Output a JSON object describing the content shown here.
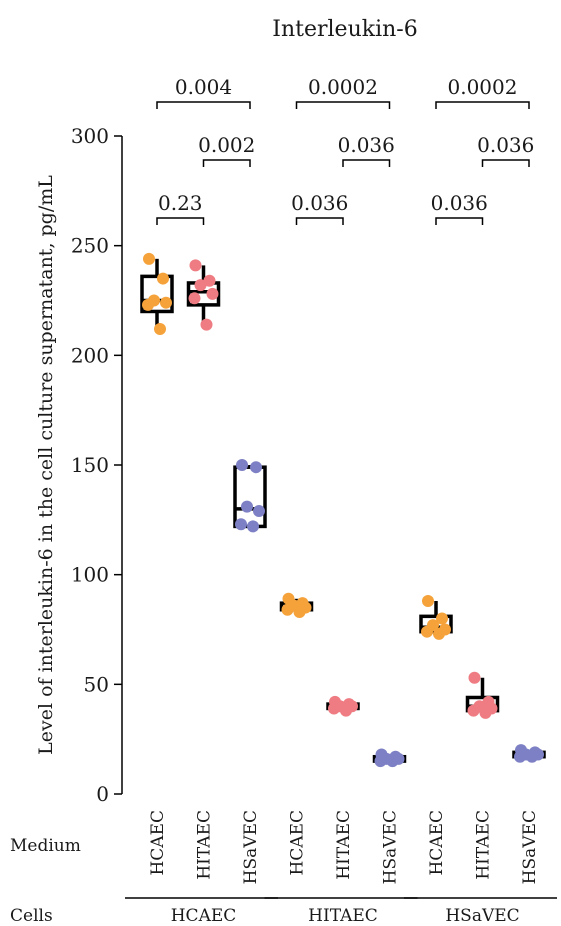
{
  "chart_data": {
    "type": "box",
    "title": "Interleukin-6",
    "ylabel": "Level of interleukin-6 in the cell culture supernatant, pg/mL",
    "xlabel": "",
    "ylim": [
      0,
      300
    ],
    "yticks": [
      0,
      50,
      100,
      150,
      200,
      250,
      300
    ],
    "row_labels": {
      "medium": "Medium",
      "cells": "Cells"
    },
    "groups": [
      "HCAEC",
      "HITAEC",
      "HSaVEC"
    ],
    "medium_colors": {
      "HCAEC": "#F5A23A",
      "HITAEC": "#EE7C82",
      "HSaVEC": "#7D80C4"
    },
    "box_color": "#000000",
    "categories": [
      {
        "cells": "HCAEC",
        "medium": "HCAEC",
        "q1": 220,
        "median": 225,
        "q3": 236,
        "min": 212,
        "max": 244,
        "points": [
          244,
          235,
          225,
          224,
          223,
          212
        ]
      },
      {
        "cells": "HCAEC",
        "medium": "HITAEC",
        "q1": 223,
        "median": 229,
        "q3": 233,
        "min": 214,
        "max": 241,
        "points": [
          241,
          234,
          232,
          228,
          226,
          214
        ]
      },
      {
        "cells": "HCAEC",
        "medium": "HSaVEC",
        "q1": 122,
        "median": 130,
        "q3": 149,
        "min": 122,
        "max": 150,
        "points": [
          150,
          149,
          131,
          129,
          123,
          122
        ]
      },
      {
        "cells": "HITAEC",
        "medium": "HCAEC",
        "q1": 84,
        "median": 85,
        "q3": 87,
        "min": 83,
        "max": 89,
        "points": [
          89,
          87,
          86,
          85,
          84,
          83
        ]
      },
      {
        "cells": "HITAEC",
        "medium": "HITAEC",
        "q1": 39,
        "median": 40,
        "q3": 41,
        "min": 38,
        "max": 42,
        "points": [
          42,
          41,
          40,
          40,
          39,
          38
        ]
      },
      {
        "cells": "HITAEC",
        "medium": "HSaVEC",
        "q1": 15,
        "median": 16,
        "q3": 17,
        "min": 15,
        "max": 18,
        "points": [
          18,
          17,
          16,
          16,
          15,
          15
        ]
      },
      {
        "cells": "HSaVEC",
        "medium": "HCAEC",
        "q1": 74,
        "median": 76,
        "q3": 81,
        "min": 73,
        "max": 88,
        "points": [
          88,
          80,
          77,
          75,
          74,
          73
        ]
      },
      {
        "cells": "HSaVEC",
        "medium": "HITAEC",
        "q1": 38,
        "median": 40,
        "q3": 44,
        "min": 37,
        "max": 53,
        "points": [
          53,
          42,
          40,
          39,
          38,
          37
        ]
      },
      {
        "cells": "HSaVEC",
        "medium": "HSaVEC",
        "q1": 17,
        "median": 18,
        "q3": 19,
        "min": 16,
        "max": 20,
        "points": [
          20,
          19,
          18,
          18,
          17,
          17
        ]
      }
    ],
    "comparisons": [
      {
        "from": 0,
        "to": 2,
        "label": "0.004",
        "level": 3
      },
      {
        "from": 1,
        "to": 2,
        "label": "0.002",
        "level": 2
      },
      {
        "from": 0,
        "to": 1,
        "label": "0.23",
        "level": 1
      },
      {
        "from": 3,
        "to": 5,
        "label": "0.0002",
        "level": 3
      },
      {
        "from": 4,
        "to": 5,
        "label": "0.036",
        "level": 2
      },
      {
        "from": 3,
        "to": 4,
        "label": "0.036",
        "level": 1
      },
      {
        "from": 6,
        "to": 8,
        "label": "0.0002",
        "level": 3
      },
      {
        "from": 7,
        "to": 8,
        "label": "0.036",
        "level": 2
      },
      {
        "from": 6,
        "to": 7,
        "label": "0.036",
        "level": 1
      }
    ]
  }
}
